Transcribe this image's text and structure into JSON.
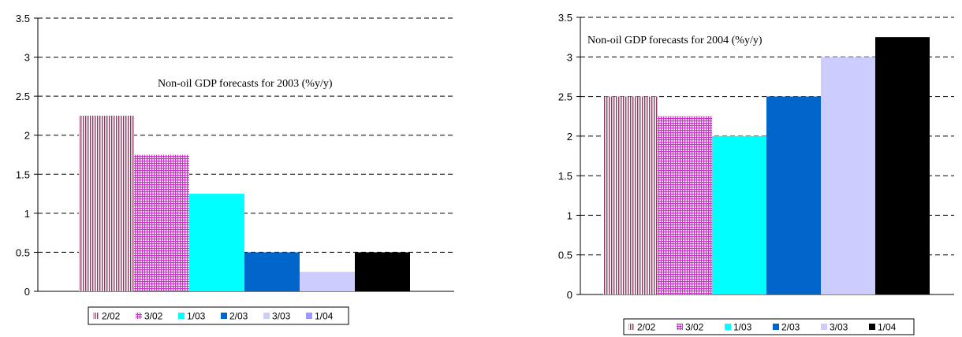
{
  "chart_data": [
    {
      "type": "bar",
      "title": "Non-oil GDP forecasts for 2003 (%y/y)",
      "xlabel": "",
      "ylabel": "",
      "ylim": [
        0,
        3.5
      ],
      "yticks": [
        "0",
        "0.5",
        "1",
        "1.5",
        "2",
        "2.5",
        "3",
        "3.5"
      ],
      "grid": true,
      "legend_position": "bottom",
      "categories": [
        "2/02",
        "3/02",
        "1/03",
        "2/03",
        "3/03",
        "1/04"
      ],
      "values": [
        2.25,
        1.75,
        1.25,
        0.5,
        0.25,
        0.5
      ]
    },
    {
      "type": "bar",
      "title": "Non-oil GDP forecasts for 2004 (%y/y)",
      "xlabel": "",
      "ylabel": "",
      "ylim": [
        0,
        3.5
      ],
      "yticks": [
        "0",
        "0.5",
        "1",
        "1.5",
        "2",
        "2.5",
        "3",
        "3.5"
      ],
      "grid": true,
      "legend_position": "bottom",
      "categories": [
        "2/02",
        "3/02",
        "1/03",
        "2/03",
        "3/03",
        "1/04"
      ],
      "values": [
        2.5,
        2.25,
        2.0,
        2.5,
        3.0,
        3.25
      ]
    }
  ],
  "styles": [
    {
      "color": "#8B3A62",
      "pattern": "vertical-lines"
    },
    {
      "color": "#CC33CC",
      "pattern": "grid"
    },
    {
      "color": "#00FFFF",
      "pattern": "solid"
    },
    {
      "color": "#0066CC",
      "pattern": "solid"
    },
    {
      "color": "#CCCCFF",
      "pattern": "solid"
    },
    {
      "color": "#000000",
      "pattern": "solid"
    }
  ],
  "legend_swatch_colors": [
    [
      "#8B3A62",
      "#CC33CC",
      "#00FFFF",
      "#0066CC",
      "#CCCCFF",
      "#9999FF"
    ],
    [
      "#8B3A62",
      "#CC33CC",
      "#00FFFF",
      "#0066CC",
      "#CCCCFF",
      "#000000"
    ]
  ]
}
